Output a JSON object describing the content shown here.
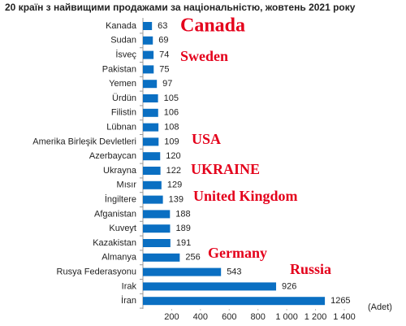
{
  "chart_data": {
    "type": "barh",
    "title": "20 країн з найвищими продажами за національністю, жовтень 2021 року",
    "categories": [
      "Kanada",
      "Sudan",
      "İsveç",
      "Pakistan",
      "Yemen",
      "Ürdün",
      "Filistin",
      "Lübnan",
      "Amerika Birleşik Devletleri",
      "Azerbaycan",
      "Ukrayna",
      "Mısır",
      "İngiltere",
      "Afganistan",
      "Kuveyt",
      "Kazakistan",
      "Almanya",
      "Rusya Federasyonu",
      "Irak",
      "İran"
    ],
    "values": [
      63,
      69,
      74,
      75,
      97,
      105,
      106,
      108,
      109,
      120,
      122,
      129,
      139,
      188,
      189,
      191,
      256,
      543,
      926,
      1265
    ],
    "color": "#0a6fc2",
    "xlim": [
      0,
      1400
    ],
    "xticks": [
      200,
      400,
      600,
      800,
      {
        "value": 1000,
        "label": "1 000"
      },
      {
        "value": 1200,
        "label": "1 200"
      },
      {
        "value": 1400,
        "label": "1 400"
      }
    ],
    "xlabel": "(Adet)",
    "annotations": [
      "Canada",
      "Sweden",
      "USA",
      "UKRAINE",
      "United Kingdom",
      "Germany",
      "Russia"
    ]
  }
}
